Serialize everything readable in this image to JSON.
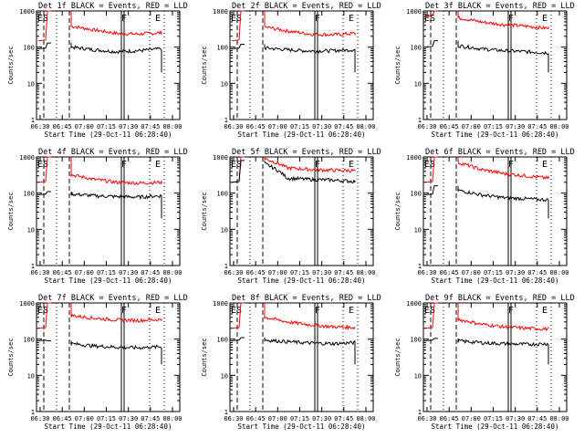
{
  "chart_data": [
    {
      "type": "line",
      "title": "Det 1f BLACK = Events, RED = LLD",
      "xlabel": "Start Time (29-Oct-11 06:28:40)",
      "ylabel": "Counts/sec",
      "x_ticks": [
        "06:30",
        "06:45",
        "07:00",
        "07:15",
        "07:30",
        "07:45",
        "08:00"
      ],
      "y_ticks": [
        "1",
        "10",
        "100",
        "1000"
      ],
      "ylim": [
        1,
        1000
      ],
      "log_y": true,
      "markers": [
        "ES",
        "F",
        "E"
      ],
      "series": [
        {
          "color": "#ff0000",
          "values": [
            150,
            1000,
            380,
            300,
            240,
            230,
            250,
            260
          ]
        },
        {
          "color": "#000000",
          "values": [
            90,
            130,
            100,
            85,
            75,
            80,
            90,
            20
          ]
        }
      ]
    },
    {
      "type": "line",
      "title": "Det 2f BLACK = Events, RED = LLD",
      "xlabel": "Start Time (29-Oct-11 06:28:40)",
      "ylabel": "Counts/sec",
      "x_ticks": [
        "06:30",
        "06:45",
        "07:00",
        "07:15",
        "07:30",
        "07:45",
        "08:00"
      ],
      "y_ticks": [
        "1",
        "10",
        "100",
        "1000"
      ],
      "ylim": [
        1,
        1000
      ],
      "log_y": true,
      "markers": [
        "ES",
        "F",
        "E"
      ],
      "series": [
        {
          "color": "#ff0000",
          "values": [
            150,
            1000,
            360,
            280,
            230,
            220,
            240,
            250
          ]
        },
        {
          "color": "#000000",
          "values": [
            90,
            120,
            95,
            85,
            78,
            80,
            85,
            20
          ]
        }
      ]
    },
    {
      "type": "line",
      "title": "Det 3f BLACK = Events, RED = LLD",
      "xlabel": "Start Time (29-Oct-11 06:28:40)",
      "ylabel": "Counts/sec",
      "x_ticks": [
        "06:30",
        "06:45",
        "07:00",
        "07:15",
        "07:30",
        "07:45",
        "08:00"
      ],
      "y_ticks": [
        "1",
        "10",
        "100",
        "1000"
      ],
      "ylim": [
        1,
        1000
      ],
      "log_y": true,
      "markers": [
        "ES",
        "F",
        "E"
      ],
      "series": [
        {
          "color": "#ff0000",
          "values": [
            700,
            1000,
            650,
            500,
            420,
            380,
            330,
            320
          ]
        },
        {
          "color": "#000000",
          "values": [
            100,
            150,
            110,
            90,
            80,
            75,
            70,
            20
          ]
        }
      ]
    },
    {
      "type": "line",
      "title": "Det 4f BLACK = Events, RED = LLD",
      "xlabel": "Start Time (29-Oct-11 06:28:40)",
      "ylabel": "Counts/sec",
      "x_ticks": [
        "06:30",
        "06:45",
        "07:00",
        "07:15",
        "07:30",
        "07:45",
        "08:00"
      ],
      "y_ticks": [
        "1",
        "10",
        "100",
        "1000"
      ],
      "ylim": [
        1,
        1000
      ],
      "log_y": true,
      "markers": [
        "ES",
        "F",
        "E"
      ],
      "series": [
        {
          "color": "#ff0000",
          "values": [
            200,
            1000,
            320,
            240,
            200,
            190,
            200,
            180
          ]
        },
        {
          "color": "#000000",
          "values": [
            90,
            110,
            95,
            85,
            80,
            78,
            85,
            20
          ]
        }
      ]
    },
    {
      "type": "line",
      "title": "Det 5f BLACK = Events, RED = LLD",
      "xlabel": "Start Time (29-Oct-11 06:28:40)",
      "ylabel": "Counts/sec",
      "x_ticks": [
        "06:30",
        "06:45",
        "07:00",
        "07:15",
        "07:30",
        "07:45",
        "08:00"
      ],
      "y_ticks": [
        "1",
        "10",
        "100",
        "1000"
      ],
      "ylim": [
        1,
        1000
      ],
      "log_y": true,
      "markers": [
        "ES",
        "F",
        "E"
      ],
      "series": [
        {
          "color": "#ff0000",
          "values": [
            200,
            1000,
            900,
            500,
            450,
            430,
            420,
            430
          ]
        },
        {
          "color": "#000000",
          "values": [
            200,
            800,
            650,
            260,
            240,
            230,
            210,
            220
          ]
        }
      ]
    },
    {
      "type": "line",
      "title": "Det 6f BLACK = Events, RED = LLD",
      "xlabel": "Start Time (29-Oct-11 06:28:40)",
      "ylabel": "Counts/sec",
      "x_ticks": [
        "06:30",
        "06:45",
        "07:00",
        "07:15",
        "07:30",
        "07:45",
        "08:00"
      ],
      "y_ticks": [
        "1",
        "10",
        "100",
        "1000"
      ],
      "ylim": [
        1,
        1000
      ],
      "log_y": true,
      "markers": [
        "ES",
        "F",
        "E"
      ],
      "series": [
        {
          "color": "#ff0000",
          "values": [
            200,
            1000,
            700,
            450,
            350,
            300,
            260,
            250
          ]
        },
        {
          "color": "#000000",
          "values": [
            90,
            160,
            120,
            90,
            75,
            70,
            65,
            20
          ]
        }
      ]
    },
    {
      "type": "line",
      "title": "Det 7f BLACK = Events, RED = LLD",
      "xlabel": "Start Time (29-Oct-11 06:28:40)",
      "ylabel": "Counts/sec",
      "x_ticks": [
        "06:30",
        "06:45",
        "07:00",
        "07:15",
        "07:30",
        "07:45",
        "08:00"
      ],
      "y_ticks": [
        "1",
        "10",
        "100",
        "1000"
      ],
      "ylim": [
        1,
        1000
      ],
      "log_y": true,
      "markers": [
        "ES",
        "F",
        "E"
      ],
      "series": [
        {
          "color": "#ff0000",
          "values": [
            200,
            1000,
            450,
            380,
            340,
            330,
            350,
            360
          ]
        },
        {
          "color": "#000000",
          "values": [
            90,
            90,
            75,
            65,
            60,
            58,
            62,
            20
          ]
        }
      ]
    },
    {
      "type": "line",
      "title": "Det 8f BLACK = Events, RED = LLD",
      "xlabel": "Start Time (29-Oct-11 06:28:40)",
      "ylabel": "Counts/sec",
      "x_ticks": [
        "06:30",
        "06:45",
        "07:00",
        "07:15",
        "07:30",
        "07:45",
        "08:00"
      ],
      "y_ticks": [
        "1",
        "10",
        "100",
        "1000"
      ],
      "ylim": [
        1,
        1000
      ],
      "log_y": true,
      "markers": [
        "ES",
        "F",
        "E"
      ],
      "series": [
        {
          "color": "#ff0000",
          "values": [
            200,
            1000,
            400,
            300,
            250,
            220,
            210,
            220
          ]
        },
        {
          "color": "#000000",
          "values": [
            90,
            110,
            95,
            85,
            78,
            75,
            80,
            20
          ]
        }
      ]
    },
    {
      "type": "line",
      "title": "Det 9f BLACK = Events, RED = LLD",
      "xlabel": "Start Time (29-Oct-11 06:28:40)",
      "ylabel": "Counts/sec",
      "x_ticks": [
        "06:30",
        "06:45",
        "07:00",
        "07:15",
        "07:30",
        "07:45",
        "08:00"
      ],
      "y_ticks": [
        "1",
        "10",
        "100",
        "1000"
      ],
      "ylim": [
        1,
        1000
      ],
      "log_y": true,
      "markers": [
        "ES",
        "F",
        "E"
      ],
      "series": [
        {
          "color": "#ff0000",
          "values": [
            200,
            1000,
            350,
            260,
            220,
            200,
            190,
            200
          ]
        },
        {
          "color": "#000000",
          "values": [
            90,
            105,
            90,
            80,
            75,
            72,
            75,
            20
          ]
        }
      ]
    }
  ]
}
